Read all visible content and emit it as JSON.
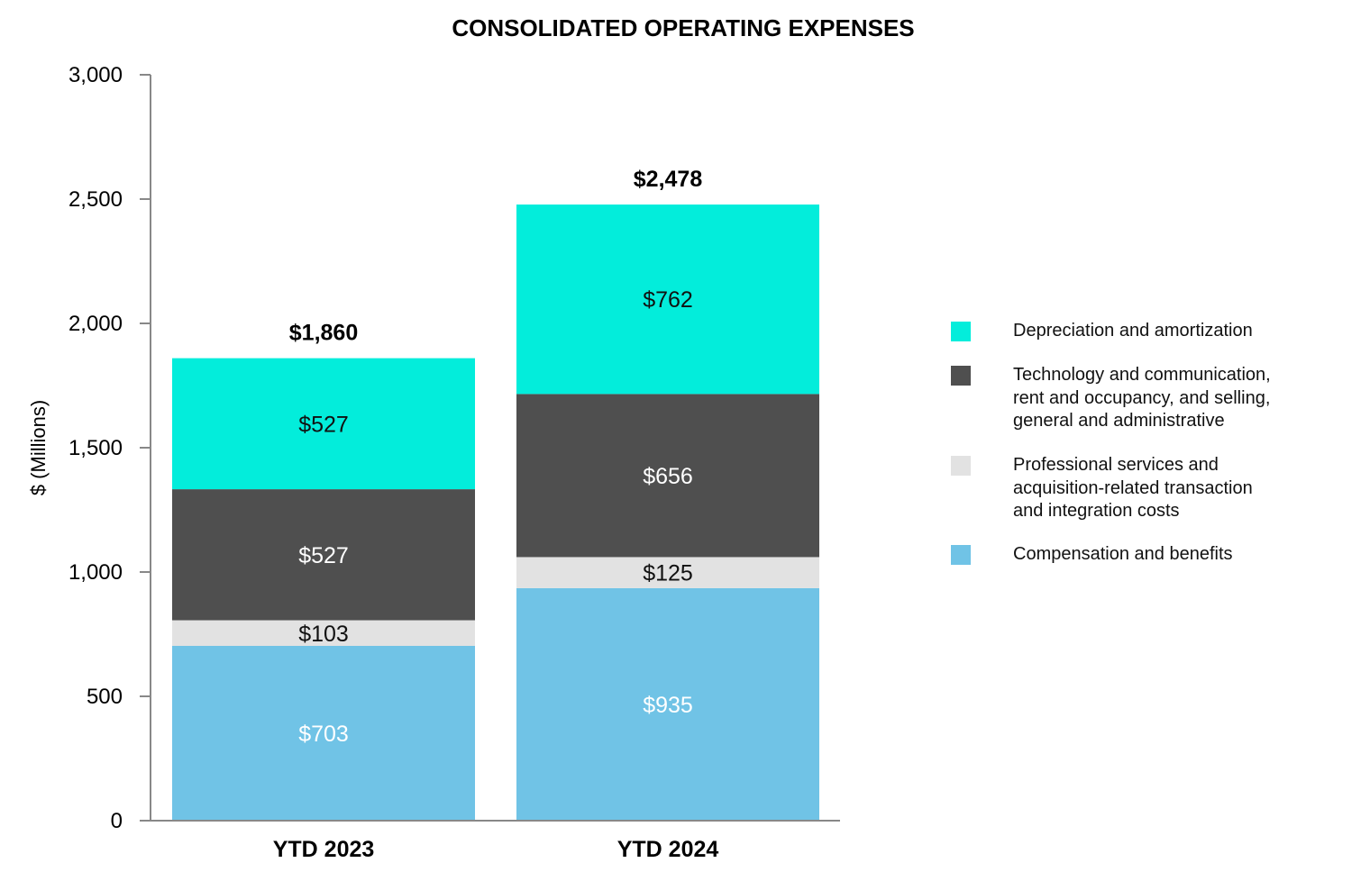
{
  "chart_data": {
    "type": "bar",
    "stacked": true,
    "title": "CONSOLIDATED OPERATING EXPENSES",
    "xlabel": "",
    "ylabel": "$ (Millions)",
    "ylim": [
      0,
      3000
    ],
    "yticks": [
      0,
      500,
      1000,
      1500,
      2000,
      2500,
      3000
    ],
    "ytick_labels": [
      "0",
      "500",
      "1,000",
      "1,500",
      "2,000",
      "2,500",
      "3,000"
    ],
    "grid": false,
    "legend_position": "right",
    "categories": [
      "YTD 2023",
      "YTD 2024"
    ],
    "totals": [
      1860,
      2478
    ],
    "total_labels": [
      "$1,860",
      "$2,478"
    ],
    "series": [
      {
        "name": "Compensation and benefits",
        "color": "#70C3E6",
        "label_color": "#ffffff",
        "values": [
          703,
          935
        ],
        "labels": [
          "$703",
          "$935"
        ]
      },
      {
        "name": "Professional services and\n acquisition-related  transaction\n and integration costs",
        "color": "#E2E2E2",
        "label_color": "#111111",
        "values": [
          103,
          125
        ],
        "labels": [
          "$103",
          "$125"
        ]
      },
      {
        "name": "Technology and communication,\nrent and occupancy, and selling,\ngeneral and administrative",
        "color": "#4F4F4F",
        "label_color": "#ffffff",
        "values": [
          527,
          656
        ],
        "labels": [
          "$527",
          "$656"
        ]
      },
      {
        "name": "Depreciation and amortization",
        "color": "#03EDDB",
        "label_color": "#111111",
        "values": [
          527,
          762
        ],
        "labels": [
          "$527",
          "$762"
        ]
      }
    ]
  }
}
